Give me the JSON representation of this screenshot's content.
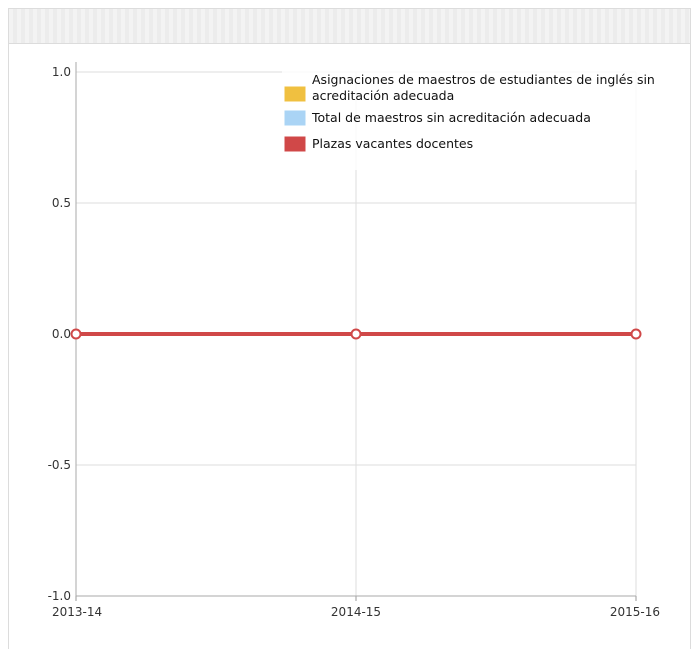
{
  "chart_data": {
    "type": "line",
    "x": [
      "2013-14",
      "2014-15",
      "2015-16"
    ],
    "ylim": [
      -1.0,
      1.0
    ],
    "yticks": [
      "1.0",
      "0.5",
      "0.0",
      "-0.5",
      "-1.0"
    ],
    "grid": true,
    "legend_position": "top-right",
    "series": [
      {
        "name": "Asignaciones de maestros de estudiantes de inglés sin acreditación adecuada",
        "values": [
          0,
          0,
          0
        ],
        "color": "#f0c040"
      },
      {
        "name": "Total de maestros sin acreditación adecuada",
        "values": [
          0,
          0,
          0
        ],
        "color": "#aad4f5"
      },
      {
        "name": "Plazas vacantes docentes",
        "values": [
          0,
          0,
          0
        ],
        "color": "#d04848"
      }
    ]
  }
}
